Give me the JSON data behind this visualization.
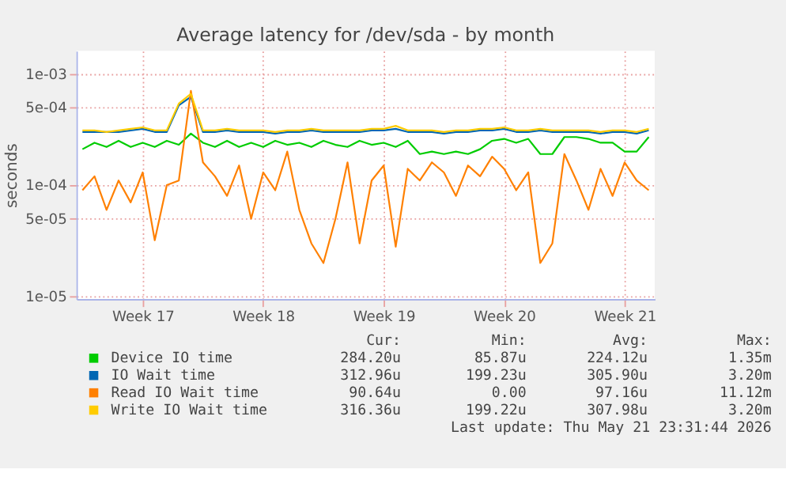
{
  "chart_data": {
    "type": "line",
    "title": "Average latency for /dev/sda - by month",
    "ylabel": "seconds",
    "categories": [
      null,
      null,
      null,
      null,
      null,
      "Week 17",
      null,
      null,
      null,
      null,
      null,
      null,
      null,
      null,
      null,
      "Week 18",
      null,
      null,
      null,
      null,
      null,
      null,
      null,
      null,
      null,
      "Week 19",
      null,
      null,
      null,
      null,
      null,
      null,
      null,
      null,
      null,
      "Week 20",
      null,
      null,
      null,
      null,
      null,
      null,
      null,
      null,
      null,
      "Week 21",
      null,
      null
    ],
    "series": [
      {
        "name": "Device IO time",
        "color": "#00cc00",
        "values": [
          0.00021,
          0.00024,
          0.00022,
          0.00025,
          0.00022,
          0.00024,
          0.00022,
          0.00025,
          0.00023,
          0.00029,
          0.00024,
          0.00022,
          0.00025,
          0.00022,
          0.00024,
          0.00022,
          0.00025,
          0.00023,
          0.00024,
          0.00022,
          0.00025,
          0.00023,
          0.00022,
          0.00025,
          0.00023,
          0.00024,
          0.00022,
          0.00025,
          0.00019,
          0.0002,
          0.00019,
          0.0002,
          0.00019,
          0.00021,
          0.00025,
          0.00026,
          0.00024,
          0.00026,
          0.00019,
          0.00019,
          0.00027,
          0.00027,
          0.00026,
          0.00024,
          0.00024,
          0.0002,
          0.0002,
          0.00027
        ]
      },
      {
        "name": "IO Wait time",
        "color": "#0066b3",
        "values": [
          0.0003,
          0.0003,
          0.0003,
          0.0003,
          0.00031,
          0.00032,
          0.0003,
          0.0003,
          0.00052,
          0.00062,
          0.0003,
          0.0003,
          0.00031,
          0.0003,
          0.0003,
          0.0003,
          0.00029,
          0.0003,
          0.0003,
          0.00031,
          0.0003,
          0.0003,
          0.0003,
          0.0003,
          0.00031,
          0.00031,
          0.00032,
          0.0003,
          0.0003,
          0.0003,
          0.00029,
          0.0003,
          0.0003,
          0.00031,
          0.00031,
          0.00032,
          0.0003,
          0.0003,
          0.00031,
          0.0003,
          0.0003,
          0.0003,
          0.0003,
          0.00029,
          0.0003,
          0.0003,
          0.00029,
          0.00031
        ]
      },
      {
        "name": "Read IO Wait time",
        "color": "#ff8000",
        "values": [
          9e-05,
          0.00012,
          6e-05,
          0.00011,
          7e-05,
          0.00013,
          3.2e-05,
          0.0001,
          0.00011,
          0.0007,
          0.00016,
          0.00012,
          8e-05,
          0.00015,
          5e-05,
          0.00013,
          9e-05,
          0.0002,
          6e-05,
          3e-05,
          2e-05,
          5e-05,
          0.00016,
          3e-05,
          0.00011,
          0.00015,
          2.8e-05,
          0.00014,
          0.00011,
          0.00016,
          0.00013,
          8e-05,
          0.00015,
          0.00012,
          0.00018,
          0.00014,
          9e-05,
          0.00013,
          2e-05,
          3e-05,
          0.00019,
          0.00011,
          6e-05,
          0.00014,
          8e-05,
          0.00016,
          0.00011,
          9e-05
        ]
      },
      {
        "name": "Write IO Wait time",
        "color": "#ffcc00",
        "values": [
          0.00031,
          0.00031,
          0.0003,
          0.00031,
          0.00032,
          0.00033,
          0.00031,
          0.00031,
          0.00054,
          0.00066,
          0.00031,
          0.00031,
          0.00032,
          0.00031,
          0.00031,
          0.00031,
          0.0003,
          0.00031,
          0.00031,
          0.00032,
          0.00031,
          0.00031,
          0.00031,
          0.00031,
          0.00032,
          0.00032,
          0.00034,
          0.00031,
          0.00031,
          0.00031,
          0.0003,
          0.00031,
          0.00031,
          0.00032,
          0.00032,
          0.00033,
          0.00031,
          0.00031,
          0.00032,
          0.00031,
          0.00031,
          0.00031,
          0.00031,
          0.0003,
          0.00031,
          0.00031,
          0.0003,
          0.00032
        ]
      }
    ],
    "ylim": [
      9.5e-06,
      0.0016
    ],
    "yticks": [
      {
        "value": 1e-05,
        "label": "1e-05"
      },
      {
        "value": 5e-05,
        "label": "5e-05"
      },
      {
        "value": 0.0001,
        "label": "1e-04"
      },
      {
        "value": 0.0005,
        "label": "5e-04"
      },
      {
        "value": 0.001,
        "label": "1e-03"
      }
    ],
    "log": "y",
    "grid": true,
    "legend": "bottom",
    "marker": "none",
    "line_style": "solid",
    "annotations": [
      "Cur:",
      "Min:",
      "Avg:",
      "Max:",
      "284.20u",
      "85.87u",
      "224.12u",
      "1.35m",
      "312.96u",
      "199.23u",
      "305.90u",
      "3.20m",
      "90.64u",
      "0.00",
      "97.16u",
      "11.12m",
      "316.36u",
      "199.22u",
      "307.98u",
      "3.20m",
      "Last update: Thu May 21 23:31:44 2026"
    ]
  }
}
